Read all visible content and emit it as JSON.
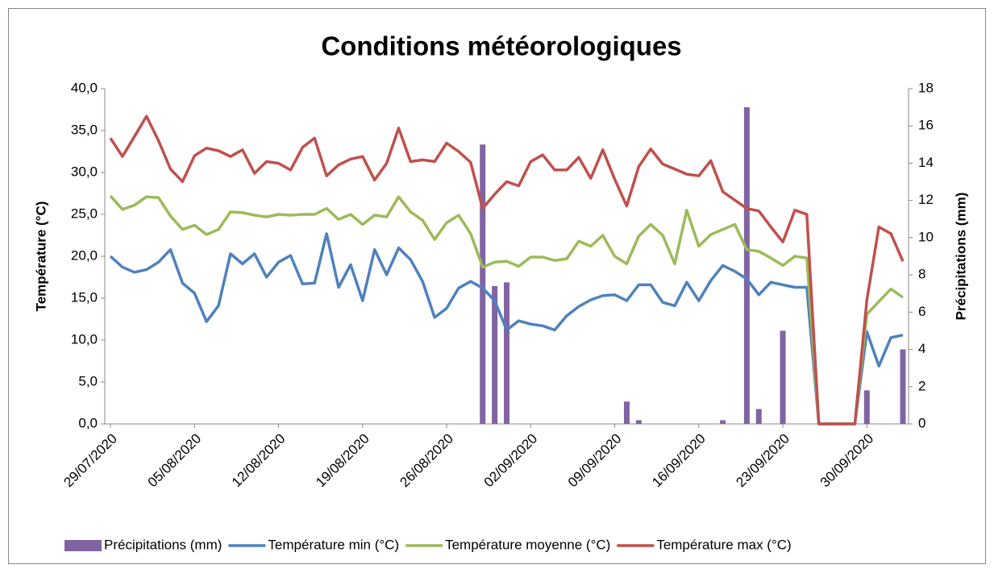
{
  "chart_data": {
    "type": "bar-line",
    "title": "Conditions météorologiques",
    "y_label": "Température (°C)",
    "y2_label": "Précipitations (mm)",
    "categories": [
      "29/07/2020",
      null,
      null,
      null,
      null,
      null,
      null,
      "05/08/2020",
      null,
      null,
      null,
      null,
      null,
      null,
      "12/08/2020",
      null,
      null,
      null,
      null,
      null,
      null,
      "19/08/2020",
      null,
      null,
      null,
      null,
      null,
      null,
      "26/08/2020",
      null,
      null,
      null,
      null,
      null,
      null,
      "02/09/2020",
      null,
      null,
      null,
      null,
      null,
      null,
      "09/09/2020",
      null,
      null,
      null,
      null,
      null,
      null,
      "16/09/2020",
      null,
      null,
      null,
      null,
      null,
      null,
      "23/09/2020",
      null,
      null,
      null,
      null,
      null,
      null,
      "30/09/2020",
      null,
      null,
      null
    ],
    "series": [
      {
        "name": "Précipitations (mm)",
        "type": "bar",
        "axis": "y2",
        "color": "#8064a2",
        "values": [
          0,
          0,
          0,
          0,
          0,
          0,
          0,
          0,
          0,
          0,
          0,
          0,
          0,
          0,
          0,
          0,
          0,
          0,
          0,
          0,
          0,
          0,
          0,
          0,
          0,
          0,
          0,
          0,
          0,
          0,
          0,
          15.0,
          7.4,
          7.6,
          0,
          0,
          0,
          0,
          0,
          0,
          0,
          0,
          0,
          1.2,
          0.2,
          0,
          0,
          0,
          0,
          0,
          0,
          0.2,
          0,
          17.0,
          0.8,
          0,
          5.0,
          0,
          0,
          0,
          0,
          0,
          0,
          1.8,
          0,
          0,
          4.0
        ]
      },
      {
        "name": "Température min (°C)",
        "type": "line",
        "color": "#4f81bd",
        "values": [
          20.0,
          18.7,
          18.1,
          18.4,
          19.3,
          20.8,
          16.8,
          15.6,
          12.2,
          14.1,
          20.3,
          19.1,
          20.3,
          17.5,
          19.3,
          20.1,
          16.7,
          16.8,
          22.7,
          16.3,
          19.0,
          14.7,
          20.8,
          17.8,
          21.0,
          19.6,
          17.0,
          12.7,
          13.8,
          16.2,
          17.0,
          16.2,
          14.7,
          11.2,
          12.3,
          11.9,
          11.7,
          11.2,
          12.9,
          14.0,
          14.8,
          15.3,
          15.4,
          14.7,
          16.6,
          16.6,
          14.5,
          14.1,
          16.9,
          14.7,
          17.1,
          18.9,
          18.2,
          17.3,
          15.4,
          16.9,
          16.6,
          16.3,
          16.3,
          0,
          0,
          0,
          0,
          11.0,
          6.9,
          10.3,
          10.6
        ]
      },
      {
        "name": "Température moyenne (°C)",
        "type": "line",
        "color": "#9bbb59",
        "values": [
          27.2,
          25.6,
          26.1,
          27.1,
          27.0,
          24.8,
          23.2,
          23.7,
          22.6,
          23.2,
          25.3,
          25.2,
          24.9,
          24.7,
          25.0,
          24.9,
          25.0,
          25.0,
          25.7,
          24.4,
          25.0,
          23.8,
          24.9,
          24.7,
          27.1,
          25.3,
          24.3,
          22.0,
          24.0,
          24.9,
          22.7,
          18.7,
          19.3,
          19.4,
          18.8,
          19.9,
          19.9,
          19.5,
          19.7,
          21.8,
          21.2,
          22.5,
          20.0,
          19.1,
          22.4,
          23.8,
          22.5,
          19.1,
          25.5,
          21.2,
          22.6,
          23.2,
          23.8,
          20.8,
          20.6,
          19.8,
          18.9,
          20.0,
          19.8,
          0,
          0,
          0,
          0,
          13.1,
          14.6,
          16.1,
          15.1
        ]
      },
      {
        "name": "Température max (°C)",
        "type": "line",
        "color": "#c0504d",
        "values": [
          34.1,
          31.9,
          34.3,
          36.7,
          33.8,
          30.4,
          28.9,
          32.0,
          32.9,
          32.6,
          31.9,
          32.7,
          29.9,
          31.3,
          31.1,
          30.3,
          33.0,
          34.1,
          29.6,
          30.9,
          31.6,
          31.9,
          29.1,
          31.1,
          35.3,
          31.3,
          31.5,
          31.3,
          33.5,
          32.5,
          31.2,
          25.7,
          27.4,
          28.9,
          28.4,
          31.3,
          32.1,
          30.3,
          30.3,
          31.8,
          29.3,
          32.7,
          29.2,
          26.0,
          30.7,
          32.8,
          31.0,
          30.4,
          29.8,
          29.6,
          31.4,
          27.7,
          26.7,
          25.7,
          25.4,
          23.5,
          21.7,
          25.5,
          25.0,
          0,
          0,
          0,
          0,
          14.8,
          23.5,
          22.7,
          19.4
        ]
      }
    ],
    "ylim": [
      0,
      40
    ],
    "yticks": [
      {
        "value": 0,
        "label": "0,0"
      },
      {
        "value": 5,
        "label": "5,0"
      },
      {
        "value": 10,
        "label": "10,0"
      },
      {
        "value": 15,
        "label": "15,0"
      },
      {
        "value": 20,
        "label": "20,0"
      },
      {
        "value": 25,
        "label": "25,0"
      },
      {
        "value": 30,
        "label": "30,0"
      },
      {
        "value": 35,
        "label": "35,0"
      },
      {
        "value": 40,
        "label": "40,0"
      }
    ],
    "y2lim": [
      0,
      18
    ],
    "y2ticks": [
      0,
      2,
      4,
      6,
      8,
      10,
      12,
      14,
      16,
      18
    ],
    "grid": false,
    "legend": "bottom"
  }
}
